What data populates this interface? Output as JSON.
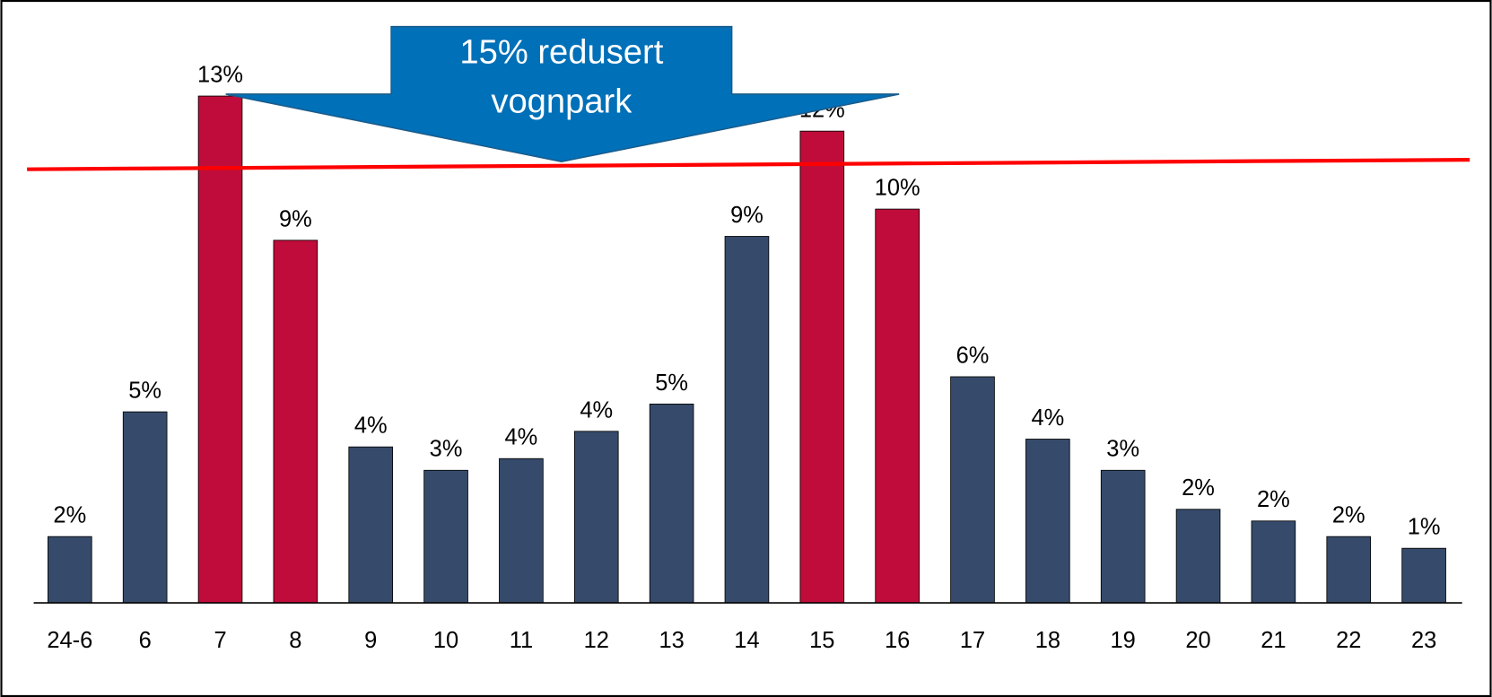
{
  "chart_data": {
    "type": "bar",
    "categories": [
      "24-6",
      "6",
      "7",
      "8",
      "9",
      "10",
      "11",
      "12",
      "13",
      "14",
      "15",
      "16",
      "17",
      "18",
      "19",
      "20",
      "21",
      "22",
      "23"
    ],
    "values": [
      1.7,
      4.9,
      13.0,
      9.3,
      4.0,
      3.4,
      3.7,
      4.4,
      5.1,
      9.4,
      12.1,
      10.1,
      5.8,
      4.2,
      3.4,
      2.4,
      2.1,
      1.7,
      1.4
    ],
    "value_labels": [
      "2%",
      "5%",
      "13%",
      "9%",
      "4%",
      "3%",
      "4%",
      "4%",
      "5%",
      "9%",
      "12%",
      "10%",
      "6%",
      "4%",
      "3%",
      "2%",
      "2%",
      "2%",
      "1%"
    ],
    "colors": [
      "#364b6b",
      "#364b6b",
      "#c00c3a",
      "#c00c3a",
      "#364b6b",
      "#364b6b",
      "#364b6b",
      "#364b6b",
      "#364b6b",
      "#364b6b",
      "#c00c3a",
      "#c00c3a",
      "#364b6b",
      "#364b6b",
      "#364b6b",
      "#364b6b",
      "#364b6b",
      "#364b6b",
      "#364b6b"
    ],
    "annotation": [
      "15% redusert",
      "vognpark"
    ]
  }
}
